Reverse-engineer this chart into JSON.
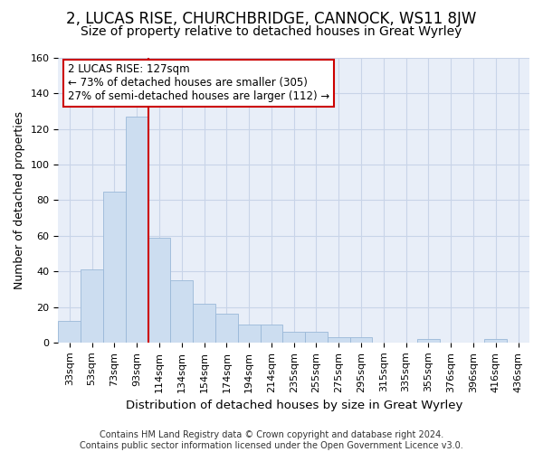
{
  "title1": "2, LUCAS RISE, CHURCHBRIDGE, CANNOCK, WS11 8JW",
  "title2": "Size of property relative to detached houses in Great Wyrley",
  "xlabel": "Distribution of detached houses by size in Great Wyrley",
  "ylabel": "Number of detached properties",
  "footnote": "Contains HM Land Registry data © Crown copyright and database right 2024.\nContains public sector information licensed under the Open Government Licence v3.0.",
  "categories": [
    "33sqm",
    "53sqm",
    "73sqm",
    "93sqm",
    "114sqm",
    "134sqm",
    "154sqm",
    "174sqm",
    "194sqm",
    "214sqm",
    "235sqm",
    "255sqm",
    "275sqm",
    "295sqm",
    "315sqm",
    "335sqm",
    "355sqm",
    "376sqm",
    "396sqm",
    "416sqm",
    "436sqm"
  ],
  "values": [
    12,
    41,
    85,
    127,
    59,
    35,
    22,
    16,
    10,
    10,
    6,
    6,
    3,
    3,
    0,
    0,
    2,
    0,
    0,
    2,
    0
  ],
  "bar_color": "#ccddf0",
  "bar_edge_color": "#9ab8d8",
  "vline_x": 3.5,
  "annotation_text": "2 LUCAS RISE: 127sqm\n← 73% of detached houses are smaller (305)\n27% of semi-detached houses are larger (112) →",
  "annotation_box_color": "#ffffff",
  "annotation_box_edge_color": "#cc0000",
  "vline_color": "#cc0000",
  "grid_color": "#c8d4e8",
  "background_color": "#e8eef8",
  "ylim": [
    0,
    160
  ],
  "title1_fontsize": 12,
  "title2_fontsize": 10,
  "xlabel_fontsize": 9.5,
  "ylabel_fontsize": 9,
  "tick_fontsize": 8,
  "annotation_fontsize": 8.5,
  "footnote_fontsize": 7
}
